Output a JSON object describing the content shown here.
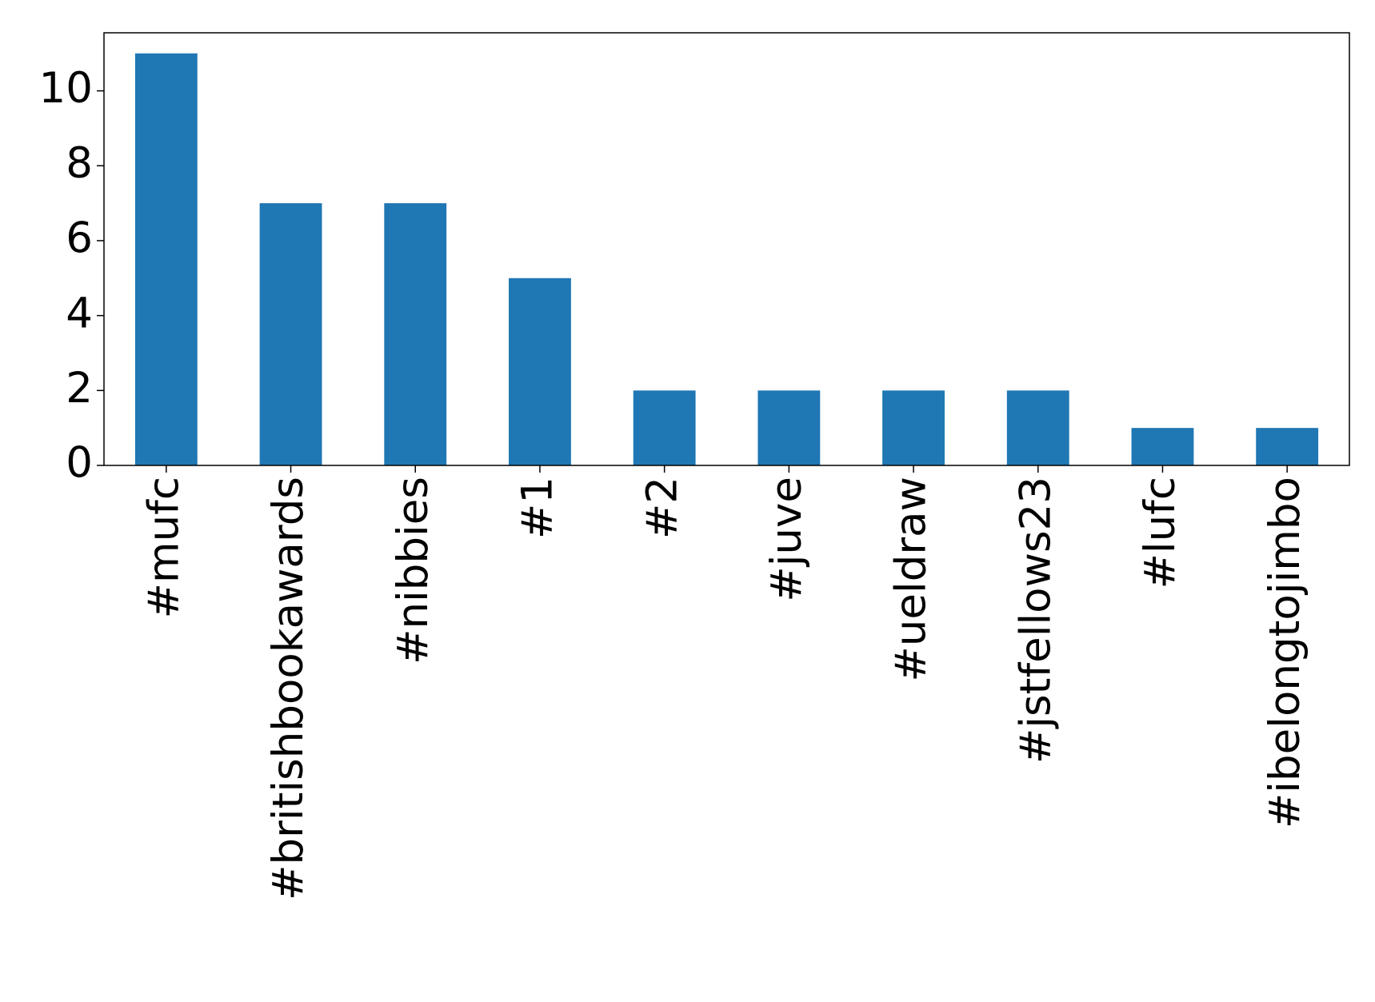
{
  "chart_data": {
    "type": "bar",
    "categories": [
      "#mufc",
      "#britishbookawards",
      "#nibbies",
      "#1",
      "#2",
      "#juve",
      "#ueldraw",
      "#jstfellows23",
      "#lufc",
      "#ibelongtojimbo"
    ],
    "values": [
      11,
      7,
      7,
      5,
      2,
      2,
      2,
      2,
      1,
      1
    ],
    "color": "#1f77b4",
    "ylim": [
      0,
      11.55
    ],
    "yticks": [
      0,
      2,
      4,
      6,
      8,
      10
    ],
    "grid": false
  }
}
